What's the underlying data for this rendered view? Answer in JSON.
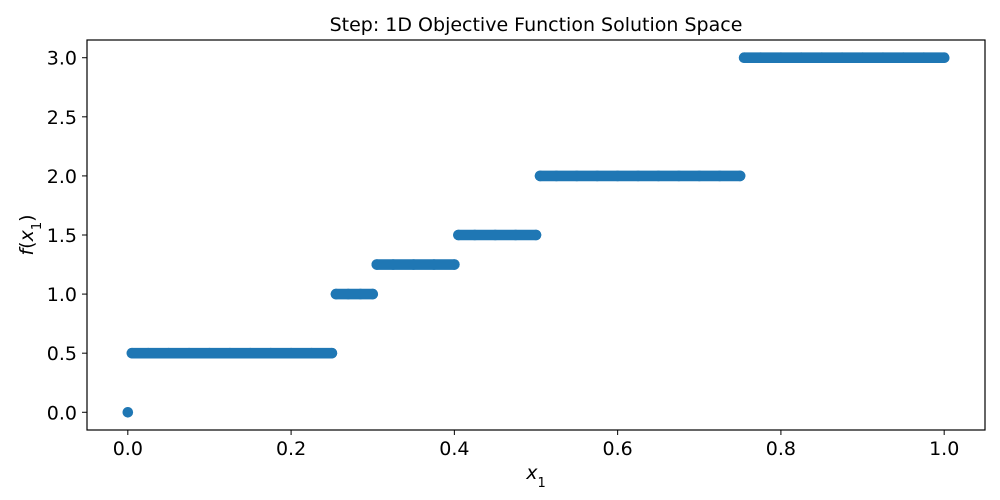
{
  "chart_data": {
    "type": "scatter",
    "title": "Step: 1D Objective Function Solution Space",
    "xlabel": {
      "main": "x",
      "sub": "1"
    },
    "ylabel": {
      "func": "f",
      "var": "x",
      "sub": "1"
    },
    "xlim": [
      -0.05,
      1.05
    ],
    "ylim": [
      -0.15,
      3.15
    ],
    "xticks": [
      0.0,
      0.2,
      0.4,
      0.6,
      0.8,
      1.0
    ],
    "xtick_labels": [
      "0.0",
      "0.2",
      "0.4",
      "0.6",
      "0.8",
      "1.0"
    ],
    "yticks": [
      0.0,
      0.5,
      1.0,
      1.5,
      2.0,
      2.5,
      3.0
    ],
    "ytick_labels": [
      "0.0",
      "0.5",
      "1.0",
      "1.5",
      "2.0",
      "2.5",
      "3.0"
    ],
    "grid": false,
    "marker_color": "#1f77b4",
    "points": [
      {
        "x": 0.0,
        "y": 0.0
      },
      {
        "x": 0.005,
        "y": 0.5
      },
      {
        "x": 0.025,
        "y": 0.5
      },
      {
        "x": 0.05,
        "y": 0.5
      },
      {
        "x": 0.075,
        "y": 0.5
      },
      {
        "x": 0.1,
        "y": 0.5
      },
      {
        "x": 0.125,
        "y": 0.5
      },
      {
        "x": 0.15,
        "y": 0.5
      },
      {
        "x": 0.175,
        "y": 0.5
      },
      {
        "x": 0.2,
        "y": 0.5
      },
      {
        "x": 0.225,
        "y": 0.5
      },
      {
        "x": 0.25,
        "y": 0.5
      },
      {
        "x": 0.255,
        "y": 1.0
      },
      {
        "x": 0.27,
        "y": 1.0
      },
      {
        "x": 0.285,
        "y": 1.0
      },
      {
        "x": 0.3,
        "y": 1.0
      },
      {
        "x": 0.305,
        "y": 1.25
      },
      {
        "x": 0.325,
        "y": 1.25
      },
      {
        "x": 0.35,
        "y": 1.25
      },
      {
        "x": 0.375,
        "y": 1.25
      },
      {
        "x": 0.4,
        "y": 1.25
      },
      {
        "x": 0.405,
        "y": 1.5
      },
      {
        "x": 0.425,
        "y": 1.5
      },
      {
        "x": 0.45,
        "y": 1.5
      },
      {
        "x": 0.475,
        "y": 1.5
      },
      {
        "x": 0.5,
        "y": 1.5
      },
      {
        "x": 0.505,
        "y": 2.0
      },
      {
        "x": 0.525,
        "y": 2.0
      },
      {
        "x": 0.55,
        "y": 2.0
      },
      {
        "x": 0.575,
        "y": 2.0
      },
      {
        "x": 0.6,
        "y": 2.0
      },
      {
        "x": 0.625,
        "y": 2.0
      },
      {
        "x": 0.65,
        "y": 2.0
      },
      {
        "x": 0.675,
        "y": 2.0
      },
      {
        "x": 0.7,
        "y": 2.0
      },
      {
        "x": 0.725,
        "y": 2.0
      },
      {
        "x": 0.75,
        "y": 2.0
      },
      {
        "x": 0.755,
        "y": 3.0
      },
      {
        "x": 0.775,
        "y": 3.0
      },
      {
        "x": 0.8,
        "y": 3.0
      },
      {
        "x": 0.825,
        "y": 3.0
      },
      {
        "x": 0.85,
        "y": 3.0
      },
      {
        "x": 0.875,
        "y": 3.0
      },
      {
        "x": 0.9,
        "y": 3.0
      },
      {
        "x": 0.925,
        "y": 3.0
      },
      {
        "x": 0.95,
        "y": 3.0
      },
      {
        "x": 0.975,
        "y": 3.0
      },
      {
        "x": 1.0,
        "y": 3.0
      }
    ]
  }
}
